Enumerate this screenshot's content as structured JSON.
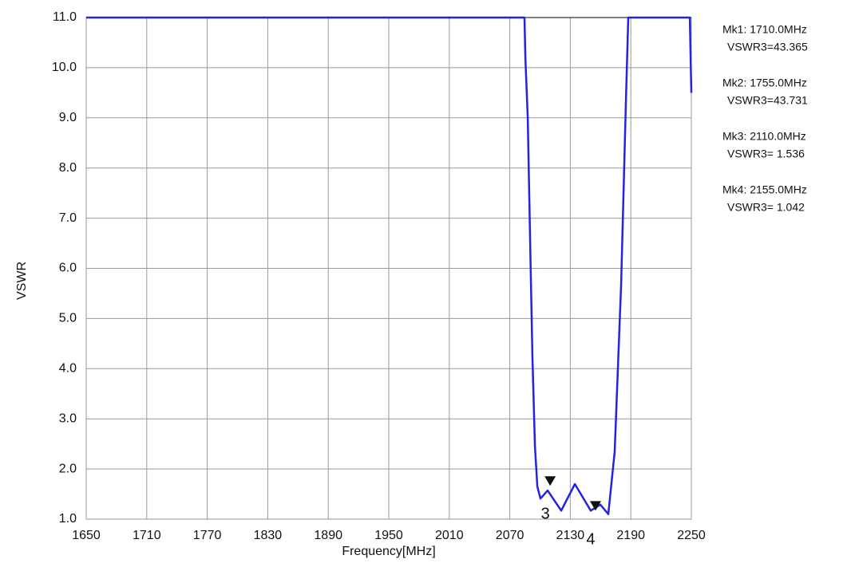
{
  "chart_data": {
    "type": "line",
    "ylabel": "VSWR",
    "xlabel": "Frequency[MHz]",
    "xlim": [
      1650,
      2250
    ],
    "ylim": [
      1,
      11
    ],
    "xticks": [
      1650,
      1710,
      1770,
      1830,
      1890,
      1950,
      2010,
      2070,
      2130,
      2190,
      2250
    ],
    "yticks": [
      {
        "value": 1,
        "label": "1.0"
      },
      {
        "value": 2,
        "label": "2.0"
      },
      {
        "value": 3,
        "label": "3.0"
      },
      {
        "value": 4,
        "label": "4.0"
      },
      {
        "value": 5,
        "label": "5.0"
      },
      {
        "value": 6,
        "label": "6.0"
      },
      {
        "value": 7,
        "label": "7.0"
      },
      {
        "value": 8,
        "label": "8.0"
      },
      {
        "value": 9,
        "label": "9.0"
      },
      {
        "value": 10,
        "label": "10.0"
      },
      {
        "value": 11,
        "label": "11.0"
      }
    ],
    "grid": true,
    "series": [
      {
        "name": "VSWR3",
        "color": "#2323e0",
        "x": [
          1650,
          2084.6,
          2085.4,
          2087.8,
          2090.1,
          2092.5,
          2094.9,
          2097.3,
          2100.4,
          2107.5,
          2121,
          2134.5,
          2150.3,
          2159.8,
          2167.7,
          2174,
          2180.4,
          2185.1,
          2187.5,
          2248.5,
          2250
        ],
        "values": [
          11,
          11,
          10.2,
          9.0,
          6.6,
          4.2,
          2.45,
          1.65,
          1.41,
          1.57,
          1.17,
          1.7,
          1.17,
          1.29,
          1.1,
          2.35,
          5.7,
          9.3,
          11,
          11,
          9.5
        ]
      }
    ],
    "markers": [
      {
        "label": "3",
        "x": 2110,
        "value": 1.536
      },
      {
        "label": "4",
        "x": 2155,
        "value": 1.042
      }
    ],
    "readouts": [
      {
        "line1": "Mk1: 1710.0MHz",
        "line2": "VSWR3=43.365"
      },
      {
        "line1": "Mk2: 1755.0MHz",
        "line2": "VSWR3=43.731"
      },
      {
        "line1": "Mk3: 2110.0MHz",
        "line2": "VSWR3= 1.536"
      },
      {
        "line1": "Mk4: 2155.0MHz",
        "line2": "VSWR3= 1.042"
      }
    ]
  }
}
